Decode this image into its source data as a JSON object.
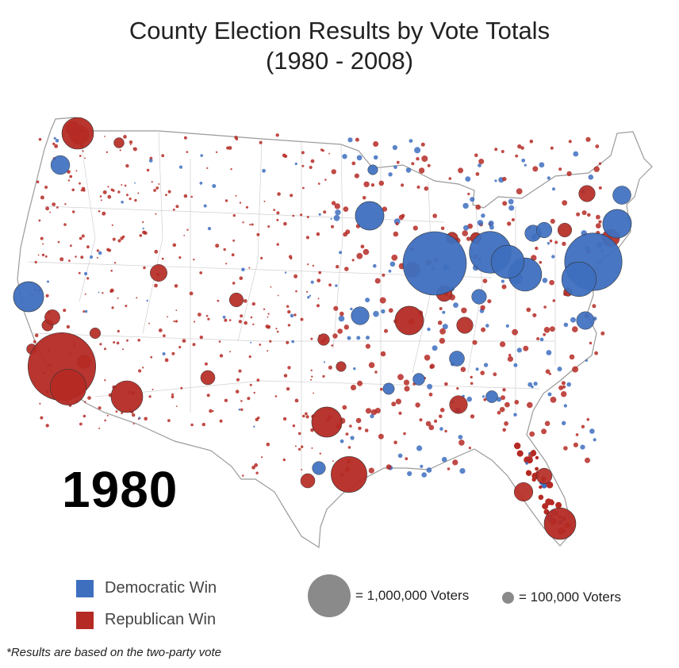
{
  "title": {
    "line1": "County Election Results by Vote Totals",
    "line2": "(1980 - 2008)"
  },
  "year": "1980",
  "colors": {
    "democratic": "#3e6fbf",
    "republican": "#b52a24",
    "scale": "#8a8a8a",
    "map_line": "#c8c8c8"
  },
  "legend": {
    "democratic_label": "Democratic Win",
    "republican_label": "Republican Win"
  },
  "size_legend": {
    "large_label": "= 1,000,000 Voters",
    "small_label": "= 100,000 Voters"
  },
  "footnote": "*Results are based on the two-party vote",
  "map_data": {
    "major_counties": [
      {
        "area": "Los Angeles, CA",
        "winner": "republican",
        "voters": 2500000
      },
      {
        "area": "Cook, IL",
        "winner": "democratic",
        "voters": 2200000
      },
      {
        "area": "Wayne, MI",
        "winner": "democratic",
        "voters": 950000
      },
      {
        "area": "New York City, NY",
        "winner": "democratic",
        "voters": 1800000
      },
      {
        "area": "Philadelphia, PA",
        "winner": "democratic",
        "voters": 650000
      },
      {
        "area": "Harris, TX",
        "winner": "republican",
        "voters": 700000
      },
      {
        "area": "Dallas, TX",
        "winner": "republican",
        "voters": 500000
      },
      {
        "area": "Maricopa, AZ",
        "winner": "republican",
        "voters": 550000
      },
      {
        "area": "San Diego, CA",
        "winner": "republican",
        "voters": 700000
      },
      {
        "area": "San Francisco Bay, CA",
        "winner": "democratic",
        "voters": 500000
      },
      {
        "area": "Cuyahoga, OH",
        "winner": "democratic",
        "voters": 600000
      },
      {
        "area": "Allegheny, PA",
        "winner": "democratic",
        "voters": 600000
      },
      {
        "area": "King, WA",
        "winner": "republican",
        "voters": 550000
      },
      {
        "area": "Miami-Dade, FL",
        "winner": "republican",
        "voters": 550000
      },
      {
        "area": "Minneapolis, MN",
        "winner": "democratic",
        "voters": 450000
      },
      {
        "area": "St. Louis, MO",
        "winner": "republican",
        "voters": 450000
      },
      {
        "area": "Boston, MA",
        "winner": "democratic",
        "voters": 450000
      }
    ]
  }
}
